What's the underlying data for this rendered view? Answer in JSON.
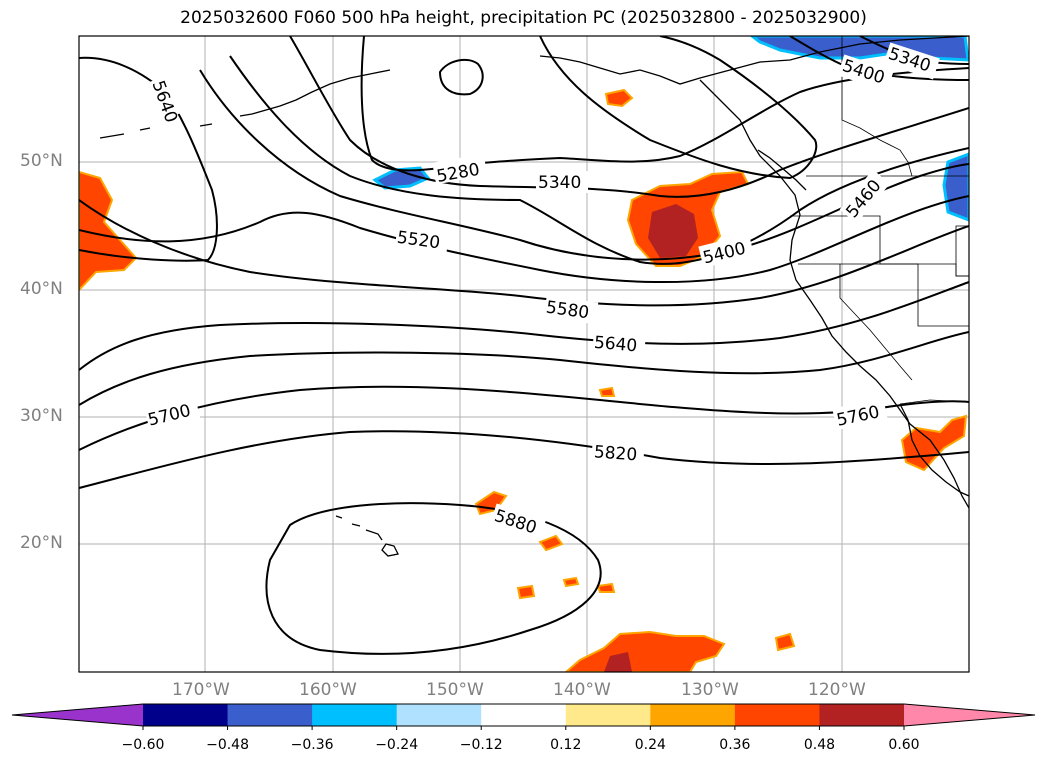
{
  "title": "2025032600 F060 500 hPa height, precipitation PC (2025032800 - 2025032900)",
  "lat_labels": [
    "50°N",
    "40°N",
    "30°N",
    "20°N"
  ],
  "lon_labels": [
    "170°W",
    "160°W",
    "150°W",
    "140°W",
    "130°W",
    "120°W"
  ],
  "contour_labels": [
    "5640",
    "5280",
    "5340",
    "5520",
    "5400",
    "5460",
    "5580",
    "5640",
    "5700",
    "5760",
    "5820",
    "5880",
    "5340",
    "5400"
  ],
  "colorbar": {
    "ticks": [
      "−0.60",
      "−0.48",
      "−0.36",
      "−0.24",
      "−0.12",
      "0.12",
      "0.24",
      "0.36",
      "0.48",
      "0.60"
    ],
    "colors": [
      "#9933cc",
      "#00008b",
      "#3a5fcd",
      "#00bfff",
      "#b0e2ff",
      "#ffffff",
      "#ffe98a",
      "#ffa500",
      "#ff4500",
      "#b22222",
      "#ff88aa"
    ]
  }
}
